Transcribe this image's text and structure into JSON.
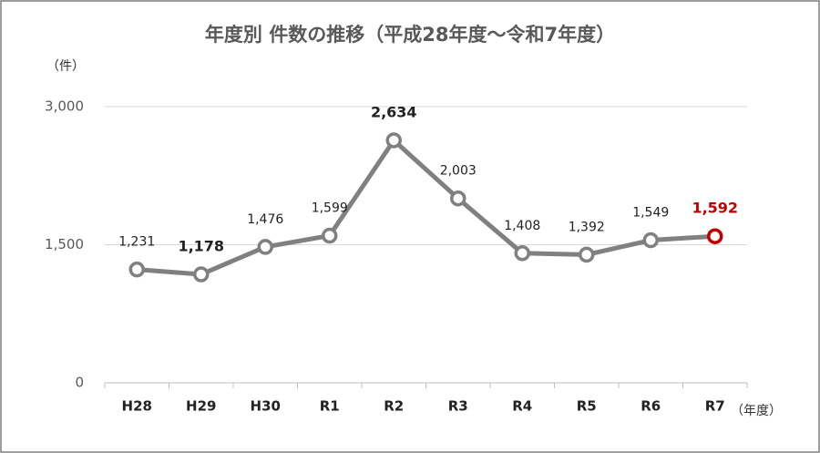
{
  "chart_data": {
    "type": "line",
    "title": "年度別 件数の推移（平成28年度～令和7年度）",
    "y_label": "（件）",
    "x_label": "（年度）",
    "categories": [
      "H28",
      "H29",
      "H30",
      "R1",
      "R2",
      "R3",
      "R4",
      "R5",
      "R6",
      "R7"
    ],
    "series": [
      {
        "name": "件数",
        "color": "#808080",
        "values": [
          1231,
          1178,
          1476,
          1599,
          2634,
          2003,
          1408,
          1392,
          1549,
          1592
        ],
        "value_labels": [
          "1,231",
          "1,178",
          "1,476",
          "1,599",
          "2,634",
          "2,003",
          "1,408",
          "1,392",
          "1,549",
          "1,592"
        ],
        "marker_colors": [
          "#808080",
          "#808080",
          "#808080",
          "#808080",
          "#808080",
          "#808080",
          "#808080",
          "#808080",
          "#808080",
          "#c00000"
        ],
        "label_colors": [
          "#222222",
          "#222222",
          "#222222",
          "#222222",
          "#222222",
          "#222222",
          "#222222",
          "#222222",
          "#222222",
          "#c00000"
        ],
        "label_bold": [
          false,
          true,
          false,
          false,
          true,
          false,
          false,
          false,
          false,
          true
        ]
      }
    ],
    "ylim": [
      0,
      3000
    ],
    "yticks": [
      {
        "value": 0,
        "label": "0"
      },
      {
        "value": 1500,
        "label": "1,500"
      },
      {
        "value": 3000,
        "label": "3,000"
      }
    ],
    "grid": true
  }
}
